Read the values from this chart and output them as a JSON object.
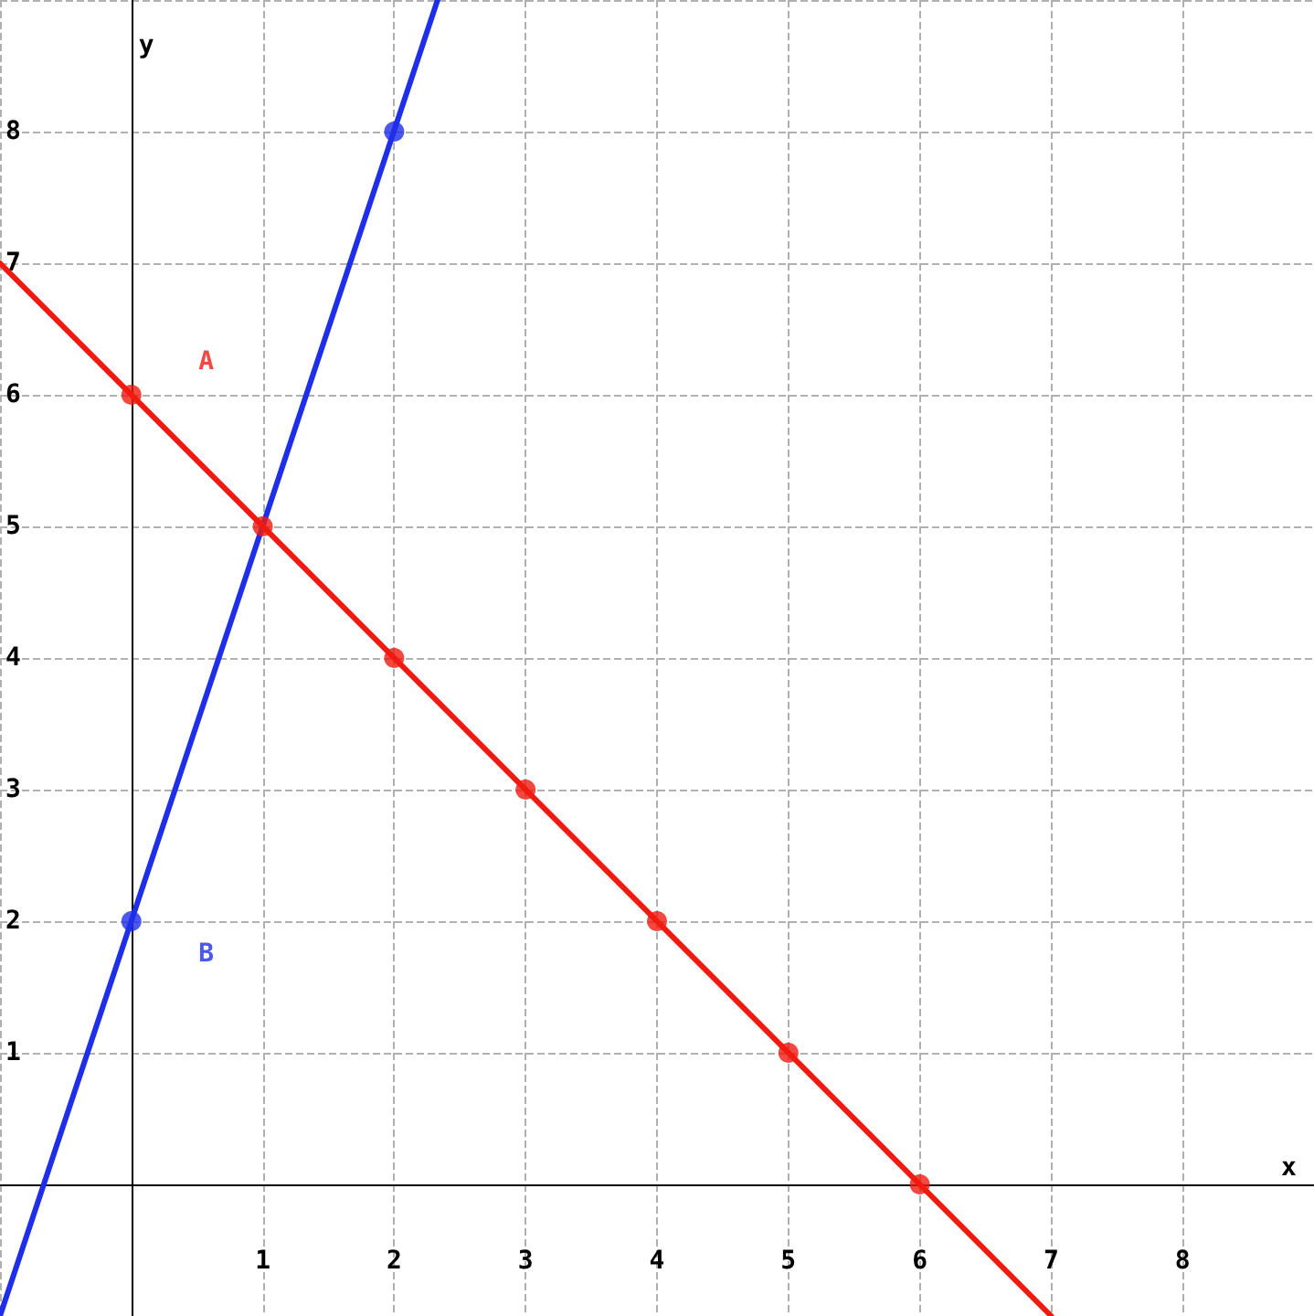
{
  "chart_data": {
    "type": "line",
    "xlabel": "x",
    "ylabel": "y",
    "xlim": [
      -1,
      9
    ],
    "ylim": [
      -1,
      9
    ],
    "xticks": [
      1,
      2,
      3,
      4,
      5,
      6,
      7,
      8
    ],
    "yticks": [
      1,
      2,
      3,
      4,
      5,
      6,
      7,
      8
    ],
    "grid": true,
    "legend": false,
    "line_style": "solid",
    "series": [
      {
        "type": "line",
        "color": "#1f2ee8",
        "marker": "none",
        "x": [
          -1,
          2.33
        ],
        "values": [
          -1,
          9
        ]
      },
      {
        "type": "scatter",
        "name": "B",
        "color": "#1f2ee8",
        "marker": "circle",
        "x": [
          0,
          1,
          2
        ],
        "values": [
          2,
          null,
          8
        ]
      },
      {
        "type": "line",
        "color": "#f01a10",
        "marker": "none",
        "x": [
          -1,
          7
        ],
        "values": [
          7,
          -1
        ]
      },
      {
        "type": "scatter",
        "name": "A",
        "color": "#f01a10",
        "marker": "circle",
        "x": [
          0,
          1,
          2,
          3,
          4,
          5,
          6
        ],
        "values": [
          6,
          5,
          4,
          3,
          2,
          1,
          0
        ]
      }
    ]
  }
}
